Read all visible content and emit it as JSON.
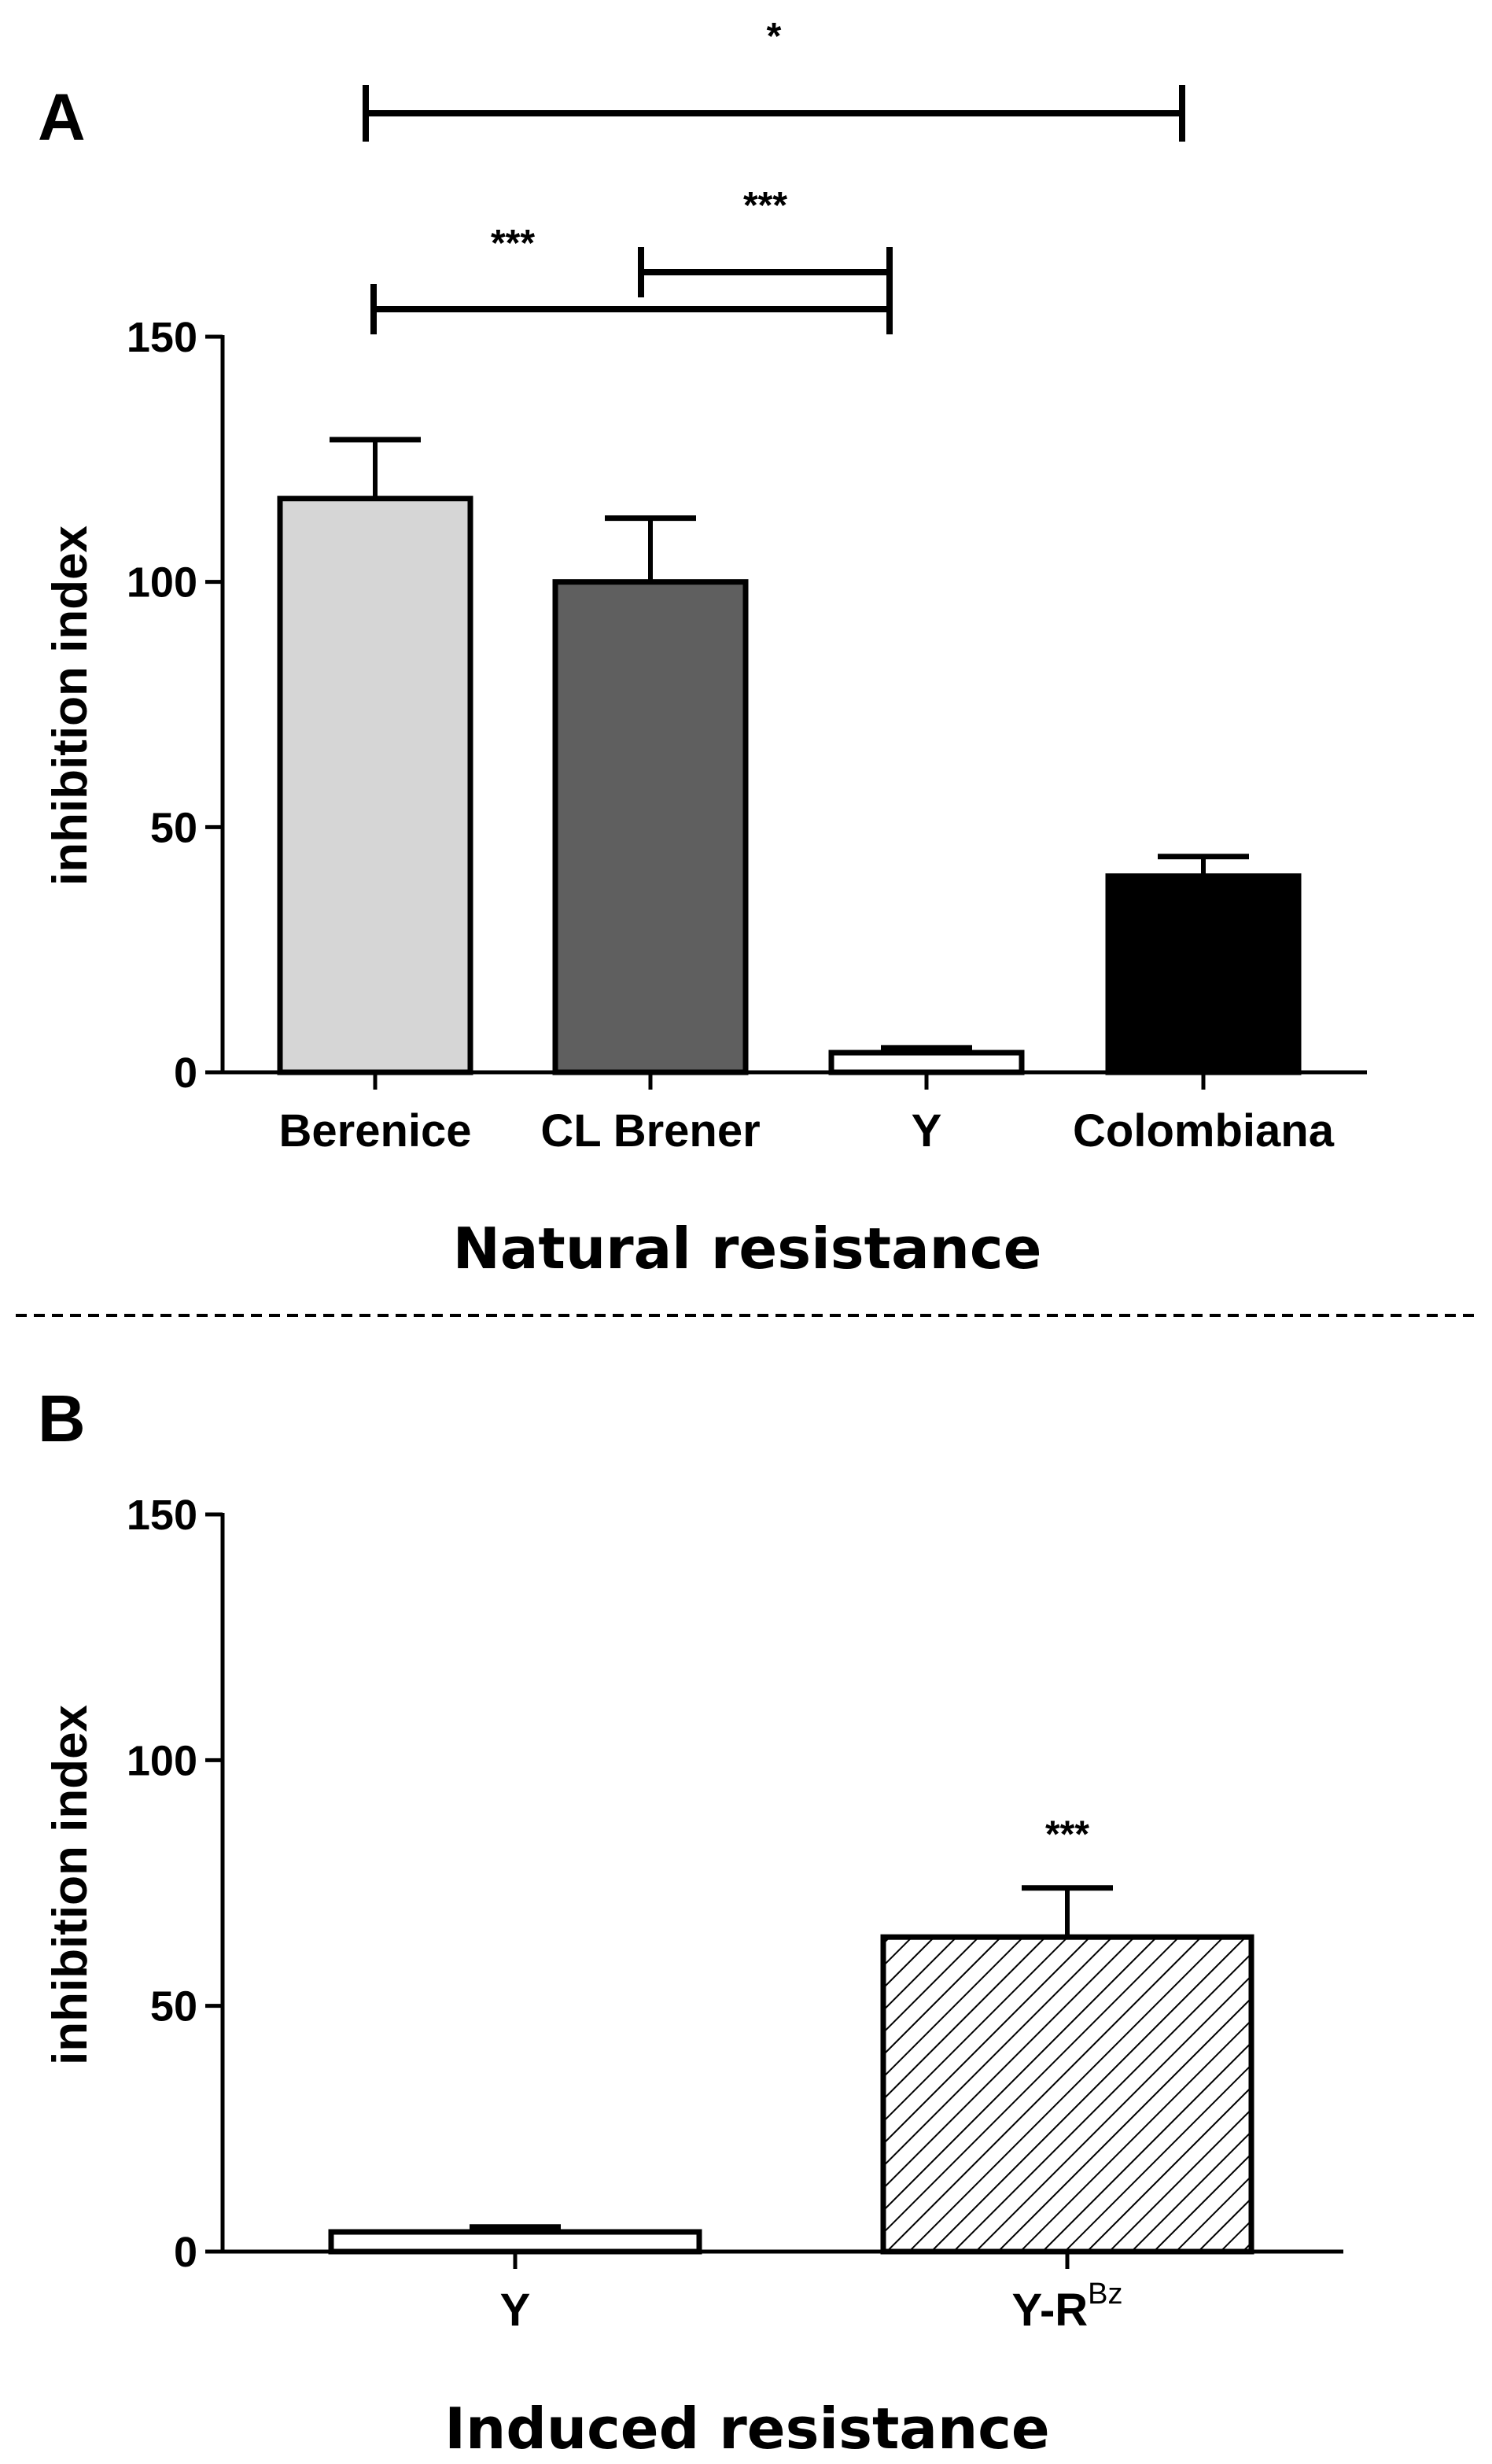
{
  "chart_data": [
    {
      "panel_label": "A",
      "type": "bar",
      "xlabel": "Natural resistance",
      "ylabel": "inhibition index",
      "ylim": [
        0,
        150
      ],
      "yticks": [
        "0",
        "50",
        "100",
        "150"
      ],
      "categories": [
        "Berenice",
        "CL Brener",
        "Y",
        "Colombiana"
      ],
      "values": [
        117,
        100,
        4,
        40
      ],
      "errors": [
        12,
        13,
        1,
        4
      ],
      "bar_colors": [
        "#d6d6d6",
        "#5f5f5f",
        "#ffffff",
        "#000000"
      ],
      "significance": [
        {
          "from": "Berenice",
          "to": "Colombiana",
          "label": "*"
        },
        {
          "from": "Berenice",
          "to": "Y",
          "label": "***"
        },
        {
          "from": "CL Brener",
          "to": "Y",
          "label": "***"
        }
      ]
    },
    {
      "panel_label": "B",
      "type": "bar",
      "xlabel": "Induced resistance",
      "ylabel": "inhibition index",
      "ylim": [
        0,
        150
      ],
      "yticks": [
        "0",
        "50",
        "100",
        "150"
      ],
      "categories": [
        "Y",
        "Y-R"
      ],
      "category_superscripts": [
        "",
        "Bz"
      ],
      "values": [
        4,
        64
      ],
      "errors": [
        1,
        10
      ],
      "bar_fills": [
        "white",
        "hatched"
      ],
      "bar_annotations": [
        "",
        "***"
      ]
    }
  ]
}
